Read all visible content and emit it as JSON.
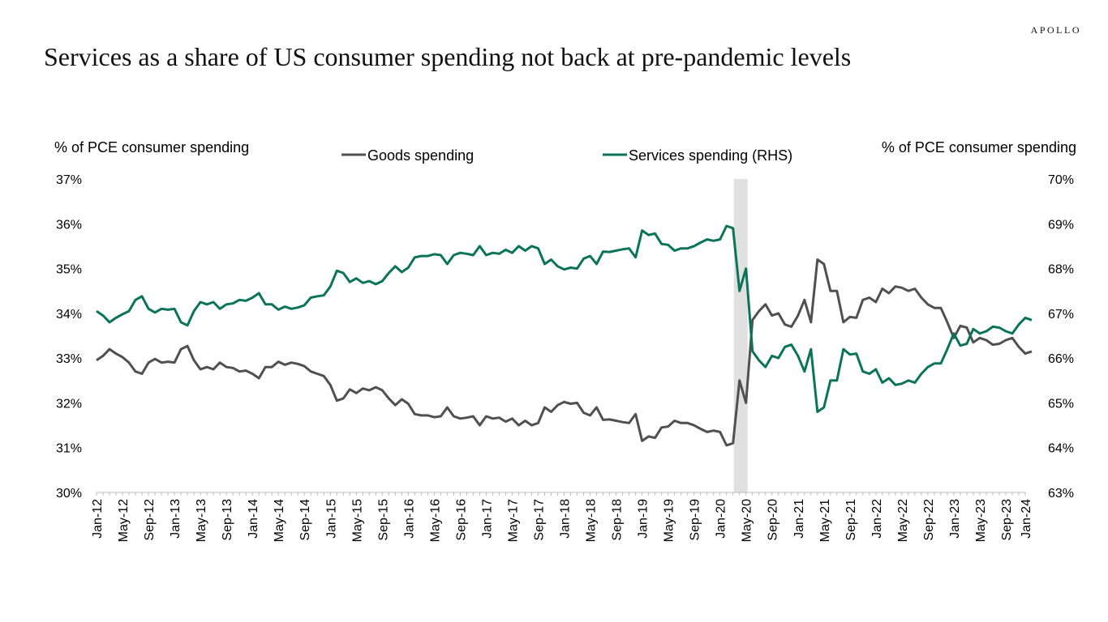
{
  "brand": "APOLLO",
  "title": "Services as a share of US consumer spending not back at pre-pandemic levels",
  "chart_data": {
    "type": "line",
    "ylabel_left": "% of PCE consumer spending",
    "ylabel_right": "% of PCE consumer spending",
    "ylim_left": [
      30,
      37
    ],
    "ylim_right": [
      63,
      70
    ],
    "yticks_left": [
      "30%",
      "31%",
      "32%",
      "33%",
      "34%",
      "35%",
      "36%",
      "37%"
    ],
    "yticks_right": [
      "63%",
      "64%",
      "65%",
      "66%",
      "67%",
      "68%",
      "69%",
      "70%"
    ],
    "x_start": "Jan-12",
    "n_points": 144,
    "xtick_labels": [
      "Jan-12",
      "May-12",
      "Sep-12",
      "Jan-13",
      "May-13",
      "Sep-13",
      "Jan-14",
      "May-14",
      "Sep-14",
      "Jan-15",
      "May-15",
      "Sep-15",
      "Jan-16",
      "May-16",
      "Sep-16",
      "Jan-17",
      "May-17",
      "Sep-17",
      "Jan-18",
      "May-18",
      "Sep-18",
      "Jan-19",
      "May-19",
      "Sep-19",
      "Jan-20",
      "May-20",
      "Sep-20",
      "Jan-21",
      "May-21",
      "Sep-21",
      "Jan-22",
      "May-22",
      "Sep-22",
      "Jan-23",
      "May-23",
      "Sep-23",
      "Jan-24"
    ],
    "recession_shading": {
      "start_index": 98,
      "end_index": 100,
      "color": "#e0e0e0"
    },
    "legend": {
      "placement": "top-center"
    },
    "series": [
      {
        "name": "Goods spending",
        "axis": "left",
        "color": "#505050",
        "values": [
          32.95,
          33.05,
          33.2,
          33.1,
          33.02,
          32.9,
          32.7,
          32.65,
          32.9,
          32.98,
          32.9,
          32.92,
          32.9,
          33.2,
          33.27,
          32.95,
          32.75,
          32.8,
          32.75,
          32.9,
          32.8,
          32.78,
          32.7,
          32.72,
          32.65,
          32.55,
          32.8,
          32.8,
          32.92,
          32.85,
          32.9,
          32.87,
          32.82,
          32.7,
          32.65,
          32.6,
          32.4,
          32.05,
          32.1,
          32.3,
          32.22,
          32.32,
          32.28,
          32.35,
          32.28,
          32.1,
          31.95,
          32.08,
          31.98,
          31.75,
          31.72,
          31.72,
          31.68,
          31.7,
          31.9,
          31.7,
          31.65,
          31.67,
          31.7,
          31.5,
          31.7,
          31.65,
          31.67,
          31.58,
          31.65,
          31.5,
          31.6,
          31.5,
          31.55,
          31.9,
          31.8,
          31.95,
          32.02,
          31.98,
          32.0,
          31.78,
          31.72,
          31.9,
          31.62,
          31.63,
          31.6,
          31.57,
          31.55,
          31.75,
          31.15,
          31.25,
          31.22,
          31.45,
          31.47,
          31.6,
          31.55,
          31.55,
          31.5,
          31.42,
          31.35,
          31.38,
          31.35,
          31.05,
          31.1,
          32.5,
          32.0,
          33.85,
          34.05,
          34.2,
          33.95,
          34.0,
          33.75,
          33.7,
          33.95,
          34.3,
          33.8,
          35.2,
          35.1,
          34.5,
          34.5,
          33.8,
          33.92,
          33.9,
          34.3,
          34.35,
          34.25,
          34.55,
          34.45,
          34.6,
          34.57,
          34.5,
          34.55,
          34.35,
          34.2,
          34.12,
          34.12,
          33.8,
          33.45,
          33.72,
          33.68,
          33.35,
          33.45,
          33.4,
          33.3,
          33.32,
          33.4,
          33.45,
          33.25,
          33.1,
          33.15
        ]
      },
      {
        "name": "Services spending (RHS)",
        "axis": "right",
        "color": "#0b7458",
        "values": [
          67.05,
          66.95,
          66.8,
          66.9,
          66.98,
          67.05,
          67.3,
          67.38,
          67.1,
          67.02,
          67.1,
          67.08,
          67.1,
          66.8,
          66.73,
          67.05,
          67.25,
          67.2,
          67.25,
          67.1,
          67.2,
          67.22,
          67.3,
          67.28,
          67.35,
          67.45,
          67.2,
          67.2,
          67.08,
          67.15,
          67.1,
          67.13,
          67.18,
          67.35,
          67.38,
          67.4,
          67.6,
          67.95,
          67.9,
          67.7,
          67.78,
          67.68,
          67.72,
          67.65,
          67.72,
          67.9,
          68.05,
          67.92,
          68.02,
          68.25,
          68.28,
          68.28,
          68.32,
          68.3,
          68.1,
          68.3,
          68.35,
          68.33,
          68.3,
          68.5,
          68.3,
          68.35,
          68.33,
          68.42,
          68.35,
          68.5,
          68.4,
          68.5,
          68.45,
          68.1,
          68.2,
          68.05,
          67.98,
          68.02,
          68.0,
          68.22,
          68.28,
          68.1,
          68.38,
          68.37,
          68.4,
          68.43,
          68.45,
          68.25,
          68.85,
          68.75,
          68.78,
          68.55,
          68.53,
          68.4,
          68.45,
          68.45,
          68.5,
          68.58,
          68.65,
          68.62,
          68.65,
          68.95,
          68.9,
          67.5,
          68.0,
          66.15,
          65.95,
          65.8,
          66.05,
          66.0,
          66.25,
          66.3,
          66.05,
          65.7,
          66.2,
          64.8,
          64.9,
          65.5,
          65.5,
          66.2,
          66.08,
          66.1,
          65.7,
          65.65,
          65.75,
          65.45,
          65.55,
          65.4,
          65.43,
          65.5,
          65.45,
          65.65,
          65.8,
          65.88,
          65.88,
          66.2,
          66.55,
          66.28,
          66.32,
          66.65,
          66.55,
          66.6,
          66.7,
          66.68,
          66.6,
          66.55,
          66.75,
          66.9,
          66.85
        ]
      }
    ]
  }
}
